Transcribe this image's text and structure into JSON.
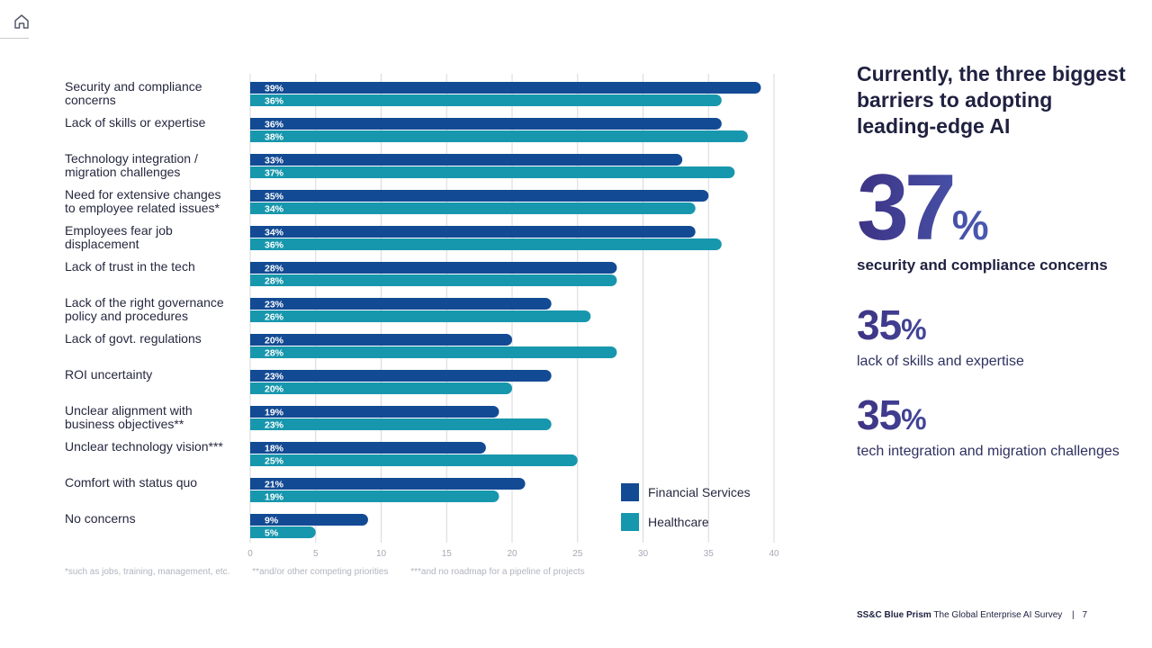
{
  "chart_data": {
    "type": "bar",
    "orientation": "horizontal",
    "categories": [
      [
        "Security and compliance",
        "concerns"
      ],
      [
        "Lack of skills or expertise"
      ],
      [
        "Technology integration /",
        "migration challenges"
      ],
      [
        "Need for extensive changes",
        "to employee related issues*"
      ],
      [
        "Employees fear job",
        "displacement"
      ],
      [
        "Lack of trust in the tech"
      ],
      [
        "Lack of the right governance",
        "policy and procedures"
      ],
      [
        "Lack of govt. regulations"
      ],
      [
        "ROI uncertainty"
      ],
      [
        "Unclear alignment with",
        "business objectives**"
      ],
      [
        "Unclear technology vision***"
      ],
      [
        "Comfort with status quo"
      ],
      [
        "No concerns"
      ]
    ],
    "series": [
      {
        "name": "Financial Services",
        "color": "#134a94",
        "values": [
          39,
          36,
          33,
          35,
          34,
          28,
          23,
          20,
          23,
          19,
          18,
          21,
          9
        ]
      },
      {
        "name": "Healthcare",
        "color": "#1797ad",
        "values": [
          36,
          38,
          37,
          34,
          36,
          28,
          26,
          28,
          20,
          23,
          25,
          19,
          5
        ]
      }
    ],
    "value_suffix": "%",
    "xlim": [
      0,
      40
    ],
    "xticks": [
      0,
      5,
      10,
      15,
      20,
      25,
      30,
      35,
      40
    ],
    "grid": true,
    "legend_position": "bottom-right",
    "title": "",
    "xlabel": "",
    "ylabel": ""
  },
  "footnotes": [
    "*such as jobs, training, management, etc.",
    "**and/or other competing priorities",
    "***and no roadmap for a pipeline of projects"
  ],
  "sidebar": {
    "headline": "Currently, the three biggest barriers to adopting leading-edge AI",
    "stats": [
      {
        "value": "37",
        "unit": "%",
        "caption": "security and compliance concerns"
      },
      {
        "value": "35",
        "unit": "%",
        "caption": "lack of skills and expertise"
      },
      {
        "value": "35",
        "unit": "%",
        "caption": "tech integration and migration challenges"
      }
    ]
  },
  "footer": {
    "brand": "SS&C Blue Prism",
    "title": "The Global Enterprise AI Survey",
    "separator": "|",
    "page_number": "7"
  },
  "nav": {
    "home_icon": "home-icon"
  }
}
